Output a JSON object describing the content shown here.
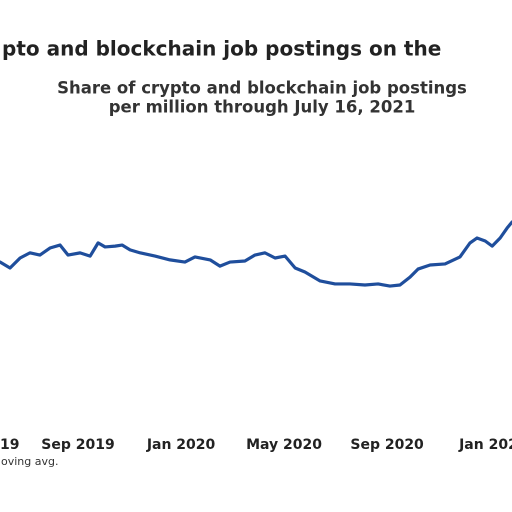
{
  "chart_data": {
    "type": "line",
    "title": "pto and blockchain job postings on the",
    "subtitle": [
      "Share of crypto and blockchain job postings",
      "per million through July 16, 2021"
    ],
    "note": "oving avg.",
    "x": [
      0.97,
      1.36,
      1.75,
      2.13,
      2.52,
      2.91,
      3.3,
      3.61,
      4.08,
      4.47,
      4.78,
      5.05,
      5.44,
      5.71,
      6.02,
      6.41,
      6.99,
      7.57,
      8.15,
      8.54,
      9.13,
      9.51,
      9.9,
      10.48,
      10.87,
      11.26,
      11.65,
      12.04,
      12.43,
      12.81,
      13.4,
      13.98,
      14.56,
      15.14,
      15.65,
      16.11,
      16.5,
      16.89,
      17.2,
      17.67,
      18.25,
      18.83,
      19.22,
      19.49,
      19.81,
      20.08,
      20.39,
      20.66,
      20.85
    ],
    "series": [
      {
        "color": "#1f4e9c",
        "values": [
          58.5,
          56.3,
          60.0,
          61.9,
          61.1,
          63.7,
          64.8,
          61.1,
          61.9,
          60.7,
          65.6,
          64.1,
          64.4,
          64.8,
          63.0,
          61.9,
          60.7,
          59.3,
          58.5,
          60.4,
          59.3,
          57.0,
          58.5,
          58.9,
          61.1,
          61.9,
          60.0,
          60.7,
          56.3,
          54.8,
          51.5,
          50.4,
          50.4,
          50.0,
          50.4,
          49.6,
          50.0,
          52.9,
          55.9,
          57.4,
          57.8,
          60.4,
          65.6,
          67.4,
          66.3,
          64.4,
          67.4,
          71.1,
          73.3
        ]
      }
    ],
    "xlim": [
      0.97,
      20.85
    ],
    "ylim": [
      0,
      100
    ],
    "xticks": [
      {
        "value": 0,
        "label": "19"
      },
      {
        "value": 4,
        "label": "Sep 2019"
      },
      {
        "value": 8,
        "label": "Jan 2020"
      },
      {
        "value": 12,
        "label": "May 2020"
      },
      {
        "value": 16,
        "label": "Sep 2020"
      },
      {
        "value": 20,
        "label": "Jan 202"
      }
    ]
  }
}
